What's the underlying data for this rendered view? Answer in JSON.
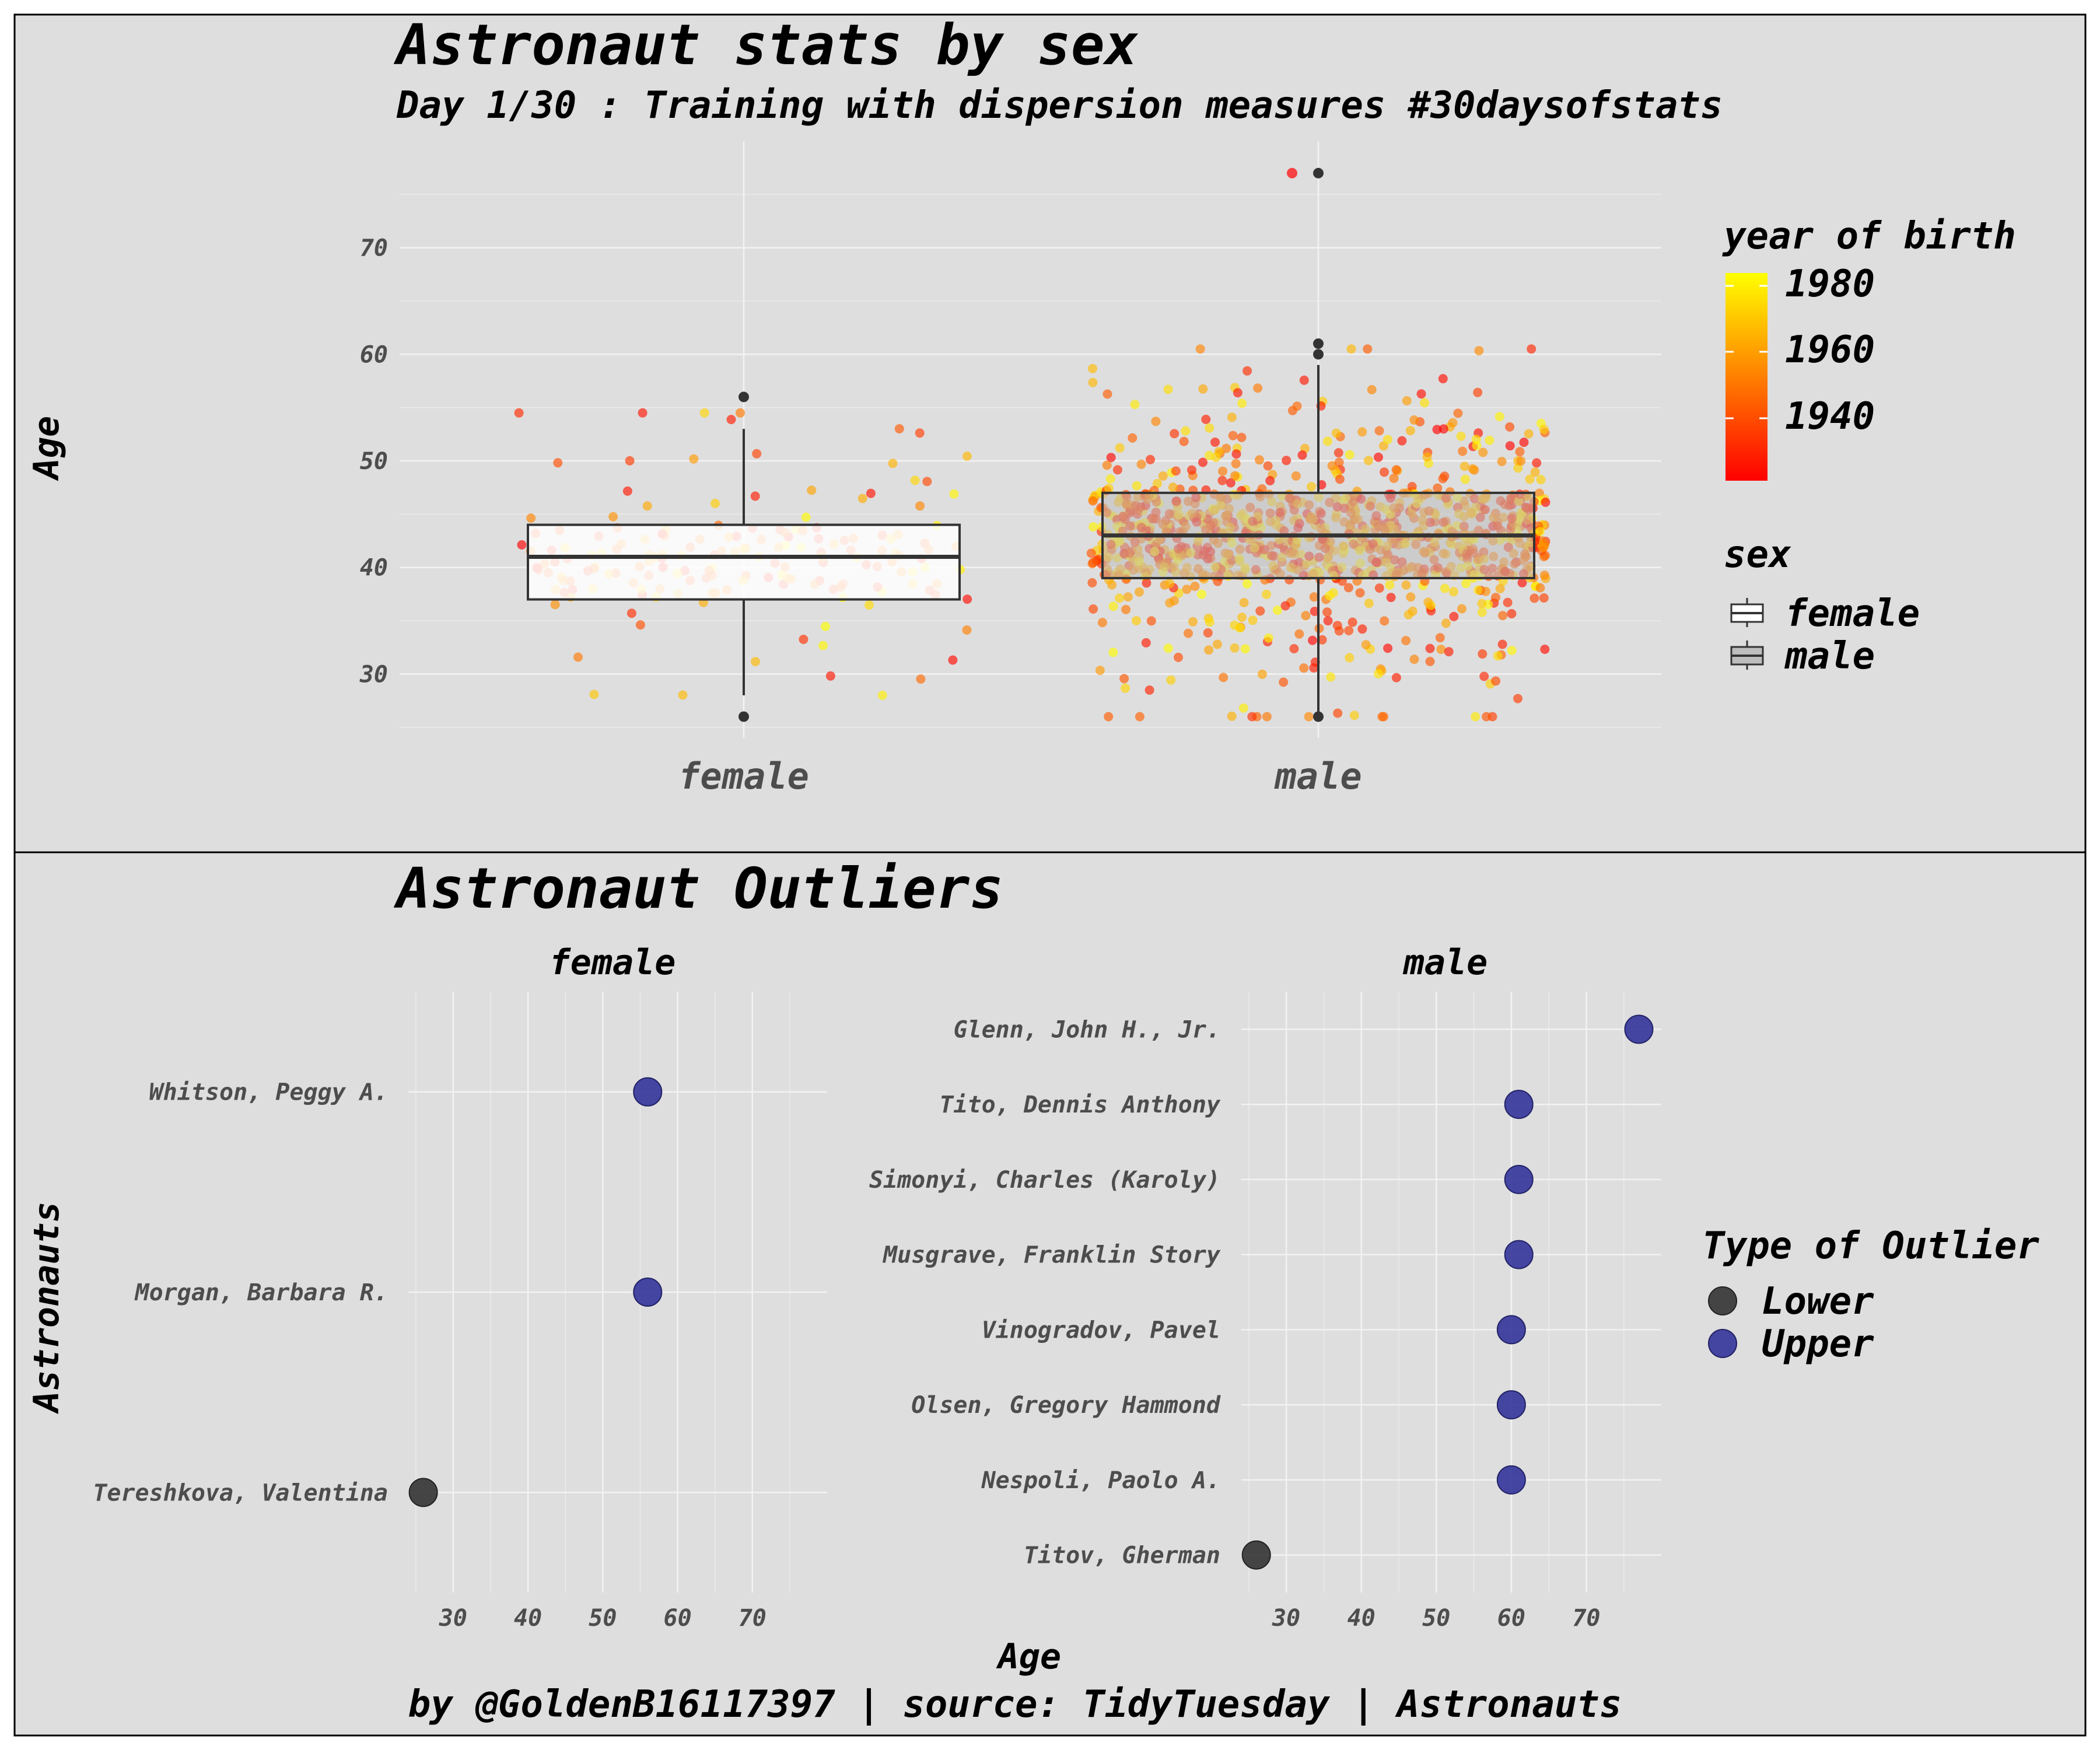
{
  "background_color": "#dedede",
  "top": {
    "title": "Astronaut stats by sex",
    "subtitle": "Day 1/30 : Training with dispersion measures #30daysofstats",
    "ylabel": "Age",
    "legend_color_title": "year of birth",
    "legend_color_labels": [
      "1980",
      "1960",
      "1940"
    ],
    "legend_fill_title": "sex",
    "legend_fill_labels": [
      "female",
      "male"
    ]
  },
  "bottom": {
    "title": "Astronaut Outliers",
    "ylabel": "Astronauts",
    "xlabel": "Age",
    "facet_labels": [
      "female",
      "male"
    ],
    "legend_title": "Type of Outlier",
    "legend_labels": [
      "Lower",
      "Upper"
    ]
  },
  "caption": "by @GoldenB16117397 | source: TidyTuesday | Astronauts",
  "colors": {
    "year_low": "#ff0000",
    "year_mid": "#ff8c00",
    "year_high": "#ffff00",
    "female_box": "#ffffff",
    "male_box": "#bdbdbd",
    "lower_outlier": "#333333",
    "upper_outlier": "#33339a"
  },
  "chart_data": [
    {
      "type": "box",
      "title": "Astronaut stats by sex",
      "subtitle": "Day 1/30 : Training with dispersion measures #30daysofstats",
      "xlabel": "",
      "ylabel": "Age",
      "categories": [
        "female",
        "male"
      ],
      "yticks": [
        30,
        40,
        50,
        60,
        70
      ],
      "ylim": [
        24,
        80
      ],
      "grid": true,
      "legend_placement": "right",
      "box": [
        {
          "name": "female",
          "min": 28,
          "q1": 37,
          "median": 41,
          "q3": 44,
          "max": 53,
          "outliers": [
            26,
            56
          ]
        },
        {
          "name": "male",
          "min": 26,
          "q1": 39,
          "median": 43,
          "q3": 47,
          "max": 59,
          "outliers": [
            26,
            60,
            61,
            77
          ]
        }
      ],
      "color_scale": {
        "name": "year of birth",
        "min": 1921,
        "max": 1983,
        "ticks": [
          1940,
          1960,
          1980
        ]
      },
      "jitter_points": {
        "female_n": 175,
        "male_n": 1100,
        "year_range": [
          1921,
          1983
        ]
      }
    },
    {
      "type": "scatter",
      "title": "Astronaut Outliers",
      "facet": "female",
      "xlabel": "Age",
      "ylabel": "Astronauts",
      "xticks": [
        30,
        40,
        50,
        60,
        70
      ],
      "xlim": [
        24,
        80
      ],
      "grid": true,
      "legend_placement": "right",
      "categories": [
        "Whitson, Peggy A.",
        "Morgan, Barbara R.",
        "Tereshkova, Valentina"
      ],
      "points": [
        {
          "name": "Whitson, Peggy A.",
          "age": 56,
          "type": "Upper"
        },
        {
          "name": "Morgan, Barbara R.",
          "age": 56,
          "type": "Upper"
        },
        {
          "name": "Tereshkova, Valentina",
          "age": 26,
          "type": "Lower"
        }
      ]
    },
    {
      "type": "scatter",
      "title": "Astronaut Outliers",
      "facet": "male",
      "xlabel": "Age",
      "ylabel": "Astronauts",
      "xticks": [
        30,
        40,
        50,
        60,
        70
      ],
      "xlim": [
        24,
        80
      ],
      "grid": true,
      "legend_placement": "right",
      "categories": [
        "Glenn, John H., Jr.",
        "Tito, Dennis Anthony",
        "Simonyi, Charles (Karoly)",
        "Musgrave, Franklin Story",
        "Vinogradov, Pavel",
        "Olsen, Gregory Hammond",
        "Nespoli, Paolo A.",
        "Titov, Gherman"
      ],
      "points": [
        {
          "name": "Glenn, John H., Jr.",
          "age": 77,
          "type": "Upper"
        },
        {
          "name": "Tito, Dennis Anthony",
          "age": 61,
          "type": "Upper"
        },
        {
          "name": "Simonyi, Charles (Karoly)",
          "age": 61,
          "type": "Upper"
        },
        {
          "name": "Musgrave, Franklin Story",
          "age": 61,
          "type": "Upper"
        },
        {
          "name": "Vinogradov, Pavel",
          "age": 60,
          "type": "Upper"
        },
        {
          "name": "Olsen, Gregory Hammond",
          "age": 60,
          "type": "Upper"
        },
        {
          "name": "Nespoli, Paolo A.",
          "age": 60,
          "type": "Upper"
        },
        {
          "name": "Titov, Gherman",
          "age": 26,
          "type": "Lower"
        }
      ]
    }
  ]
}
